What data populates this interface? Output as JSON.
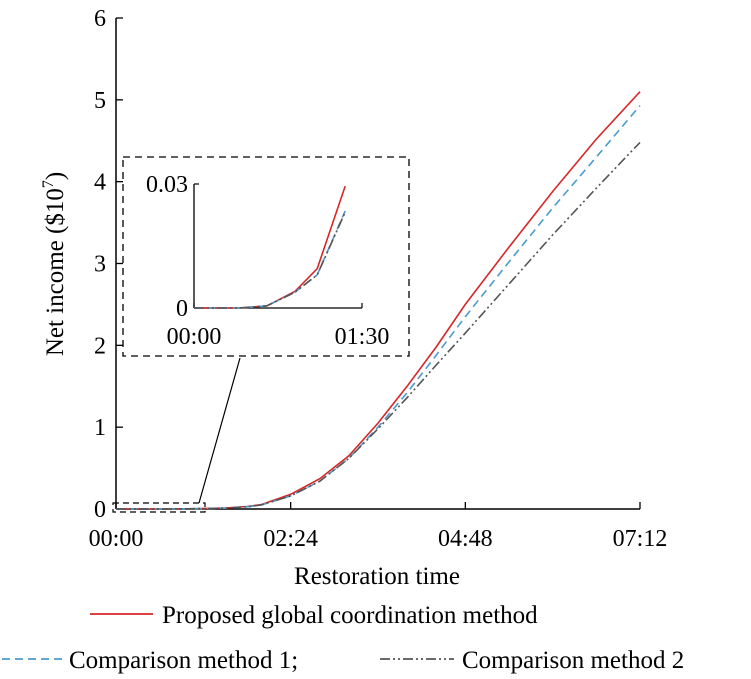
{
  "chart_data": {
    "type": "line",
    "xlabel": "Restoration time",
    "ylabel_main": "Net income ($10",
    "ylabel_exp": "7",
    "ylabel_close": ")",
    "x_unit": "hours",
    "xlim": [
      0,
      7.2
    ],
    "ylim": [
      0,
      6
    ],
    "x_ticks": [
      0,
      2.4,
      4.8,
      7.2
    ],
    "x_tick_labels": [
      "00:00",
      "02:24",
      "04:48",
      "07:12"
    ],
    "y_ticks": [
      0,
      1,
      2,
      3,
      4,
      5,
      6
    ],
    "y_tick_labels": [
      "0",
      "1",
      "2",
      "3",
      "4",
      "5",
      "6"
    ],
    "series": [
      {
        "name": "Proposed global coordination method",
        "color": "#d62728",
        "style": "solid",
        "x": [
          0,
          0.5,
          1.0,
          1.5,
          1.8,
          2.0,
          2.4,
          2.8,
          3.2,
          3.6,
          4.0,
          4.4,
          4.8,
          5.4,
          6.0,
          6.6,
          7.2
        ],
        "y": [
          0,
          0,
          0.003,
          0.012,
          0.03,
          0.055,
          0.18,
          0.37,
          0.65,
          1.05,
          1.5,
          1.98,
          2.5,
          3.2,
          3.88,
          4.52,
          5.1
        ]
      },
      {
        "name": "Comparison method 1;",
        "color": "#4a9bcf",
        "style": "dashed",
        "x": [
          0,
          0.5,
          1.0,
          1.5,
          1.8,
          2.0,
          2.4,
          2.8,
          3.2,
          3.6,
          4.0,
          4.4,
          4.8,
          5.4,
          6.0,
          6.6,
          7.2
        ],
        "y": [
          0,
          0,
          0.003,
          0.011,
          0.027,
          0.05,
          0.16,
          0.34,
          0.62,
          1.0,
          1.42,
          1.88,
          2.35,
          3.02,
          3.68,
          4.3,
          4.93
        ]
      },
      {
        "name": "Comparison method 2",
        "color": "#555555",
        "style": "dashdotdot",
        "x": [
          0,
          0.5,
          1.0,
          1.5,
          1.8,
          2.0,
          2.4,
          2.8,
          3.2,
          3.6,
          4.0,
          4.4,
          4.8,
          5.4,
          6.0,
          6.6,
          7.2
        ],
        "y": [
          0,
          0,
          0.003,
          0.011,
          0.027,
          0.05,
          0.16,
          0.34,
          0.62,
          0.98,
          1.36,
          1.76,
          2.15,
          2.75,
          3.35,
          3.92,
          4.48
        ]
      }
    ],
    "inset": {
      "xlim": [
        0,
        1.5
      ],
      "ylim": [
        0,
        0.03
      ],
      "x_tick_labels": [
        "00:00",
        "01:30"
      ],
      "y_tick_labels": [
        "0",
        "0.03"
      ],
      "series": [
        {
          "color": "#d62728",
          "style": "solid",
          "x": [
            0,
            0.4,
            0.65,
            0.9,
            1.1,
            1.35
          ],
          "y": [
            0,
            0,
            0.0005,
            0.004,
            0.0095,
            0.0295
          ]
        },
        {
          "color": "#4a9bcf",
          "style": "dashed",
          "x": [
            0,
            0.4,
            0.65,
            0.9,
            1.1,
            1.35
          ],
          "y": [
            0,
            0,
            0.0005,
            0.0038,
            0.008,
            0.0235
          ]
        },
        {
          "color": "#555555",
          "style": "dashdotdot",
          "x": [
            0,
            0.4,
            0.65,
            0.9,
            1.1,
            1.35
          ],
          "y": [
            0,
            0,
            0.0005,
            0.0038,
            0.008,
            0.0232
          ]
        }
      ]
    },
    "legend_placement": "bottom"
  }
}
